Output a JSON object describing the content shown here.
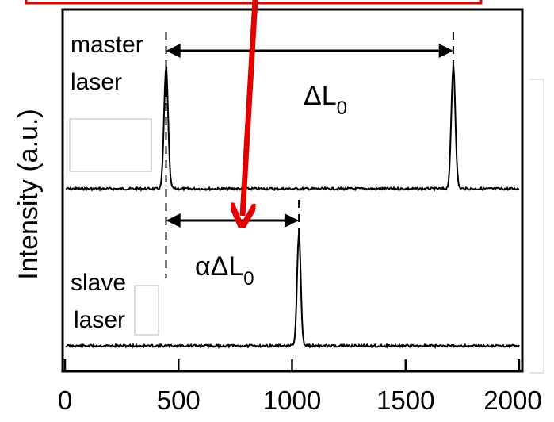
{
  "chart_data": {
    "type": "line",
    "xlabel": "",
    "ylabel": "Intensity (a.u.)",
    "xlim": [
      0,
      2000
    ],
    "x_ticks": [
      "0",
      "500",
      "1000",
      "1500",
      "2000"
    ],
    "series": [
      {
        "name": "master laser",
        "peaks": [
          445,
          1710
        ]
      },
      {
        "name": "slave laser",
        "peaks": [
          1030
        ]
      }
    ],
    "annotations": {
      "master_label_line1": "master",
      "master_label_line2": "laser",
      "slave_label_line1": "slave",
      "slave_label_line2": "laser",
      "delta_main": "ΔL",
      "delta_sub": "0",
      "alpha_main": "αΔL",
      "alpha_sub": "0"
    },
    "colors": {
      "line": "#000000",
      "highlight": "#e00000"
    }
  }
}
